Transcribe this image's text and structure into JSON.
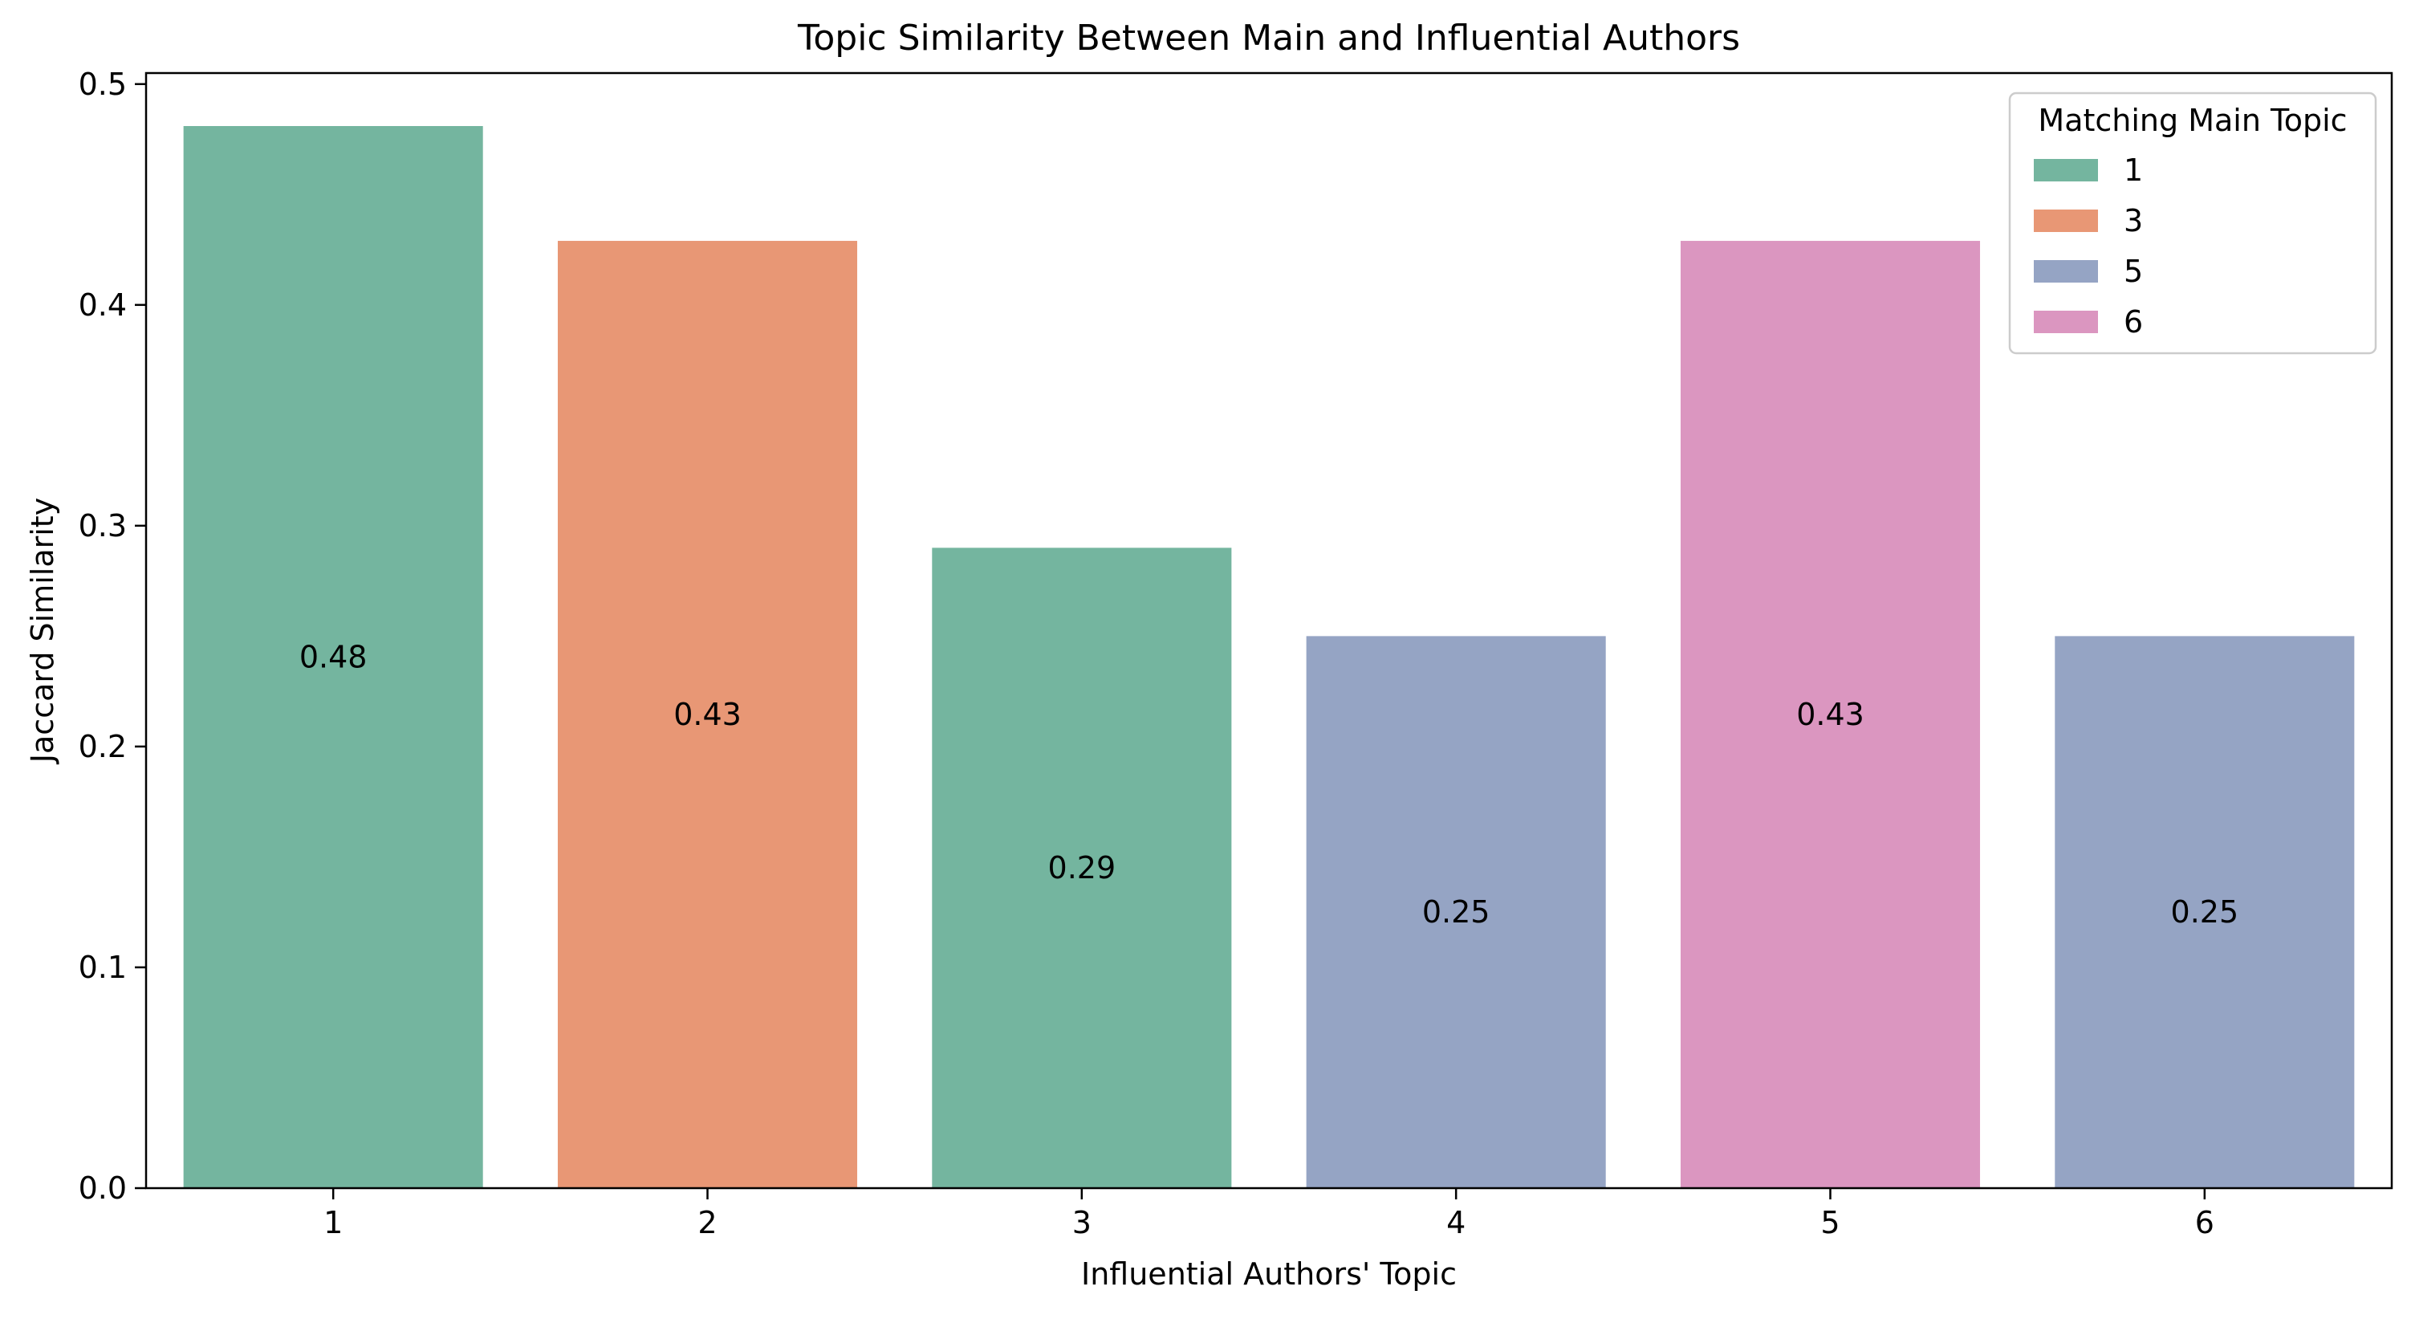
{
  "chart_data": {
    "type": "bar",
    "title": "Topic Similarity Between Main and Influential Authors",
    "xlabel": "Influential Authors' Topic",
    "ylabel": "Jaccard Similarity",
    "categories": [
      "1",
      "2",
      "3",
      "4",
      "5",
      "6"
    ],
    "values": [
      0.481,
      0.429,
      0.29,
      0.25,
      0.429,
      0.25
    ],
    "value_labels": [
      "0.48",
      "0.43",
      "0.29",
      "0.25",
      "0.43",
      "0.25"
    ],
    "hue": [
      "1",
      "3",
      "1",
      "5",
      "6",
      "5"
    ],
    "ylim": [
      0,
      0.505
    ],
    "yticks": [
      0.0,
      0.1,
      0.2,
      0.3,
      0.4,
      0.5
    ],
    "ytick_labels": [
      "0.0",
      "0.1",
      "0.2",
      "0.3",
      "0.4",
      "0.5"
    ],
    "grid": false,
    "legend": {
      "title": "Matching Main Topic",
      "placement": "top-right",
      "entries": [
        {
          "label": "1",
          "color": "#74b59f"
        },
        {
          "label": "3",
          "color": "#e89775"
        },
        {
          "label": "5",
          "color": "#95a4c4"
        },
        {
          "label": "6",
          "color": "#db96c0"
        }
      ]
    }
  }
}
